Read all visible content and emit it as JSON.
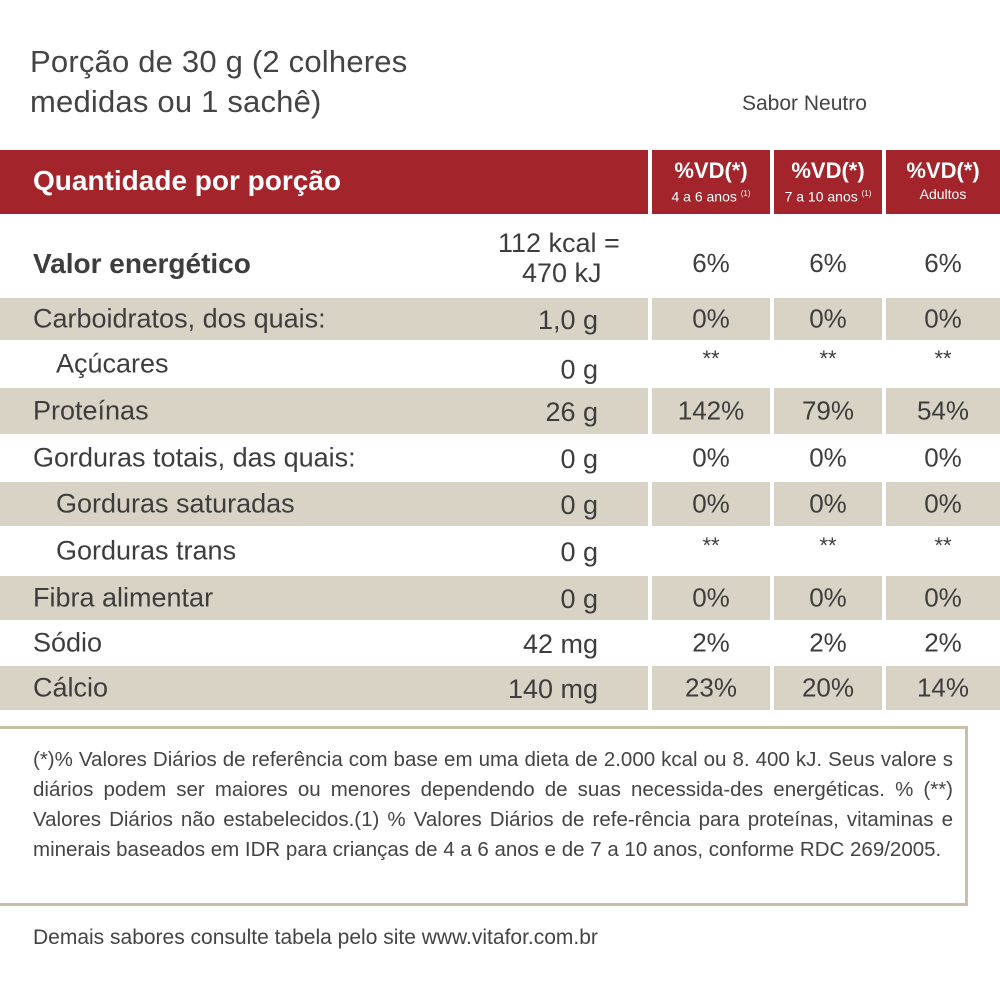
{
  "serving": {
    "line1": "Porção de 30 g (2 colheres",
    "line2": "medidas ou 1 sachê)"
  },
  "flavor": "Sabor Neutro",
  "header": {
    "title": "Quantidade por porção",
    "col1_vd": "%VD(*)",
    "col1_sub": "4 a 6 anos",
    "col1_sup": "(1)",
    "col2_vd": "%VD(*)",
    "col2_sub": "7 a 10 anos",
    "col2_sup": "(1)",
    "col3_vd": "%VD(*)",
    "col3_sub": "Adultos"
  },
  "energy": {
    "label": "Valor energético",
    "amount_line1": "112 kcal =",
    "amount_line2": "470 kJ",
    "vd1": "6%",
    "vd2": "6%",
    "vd3": "6%"
  },
  "rows": [
    {
      "label": "Carboidratos, dos quais:",
      "amount": "1,0 g",
      "vd1": "0%",
      "vd2": "0%",
      "vd3": "0%"
    },
    {
      "label": "Açúcares",
      "amount": "0 g",
      "vd1": "**",
      "vd2": "**",
      "vd3": "**"
    },
    {
      "label": "Proteínas",
      "amount": "26 g",
      "vd1": "142%",
      "vd2": "79%",
      "vd3": "54%"
    },
    {
      "label": "Gorduras totais, das quais:",
      "amount": "0 g",
      "vd1": "0%",
      "vd2": "0%",
      "vd3": "0%"
    },
    {
      "label": "Gorduras saturadas",
      "amount": "0 g",
      "vd1": "0%",
      "vd2": "0%",
      "vd3": "0%"
    },
    {
      "label": "Gorduras trans",
      "amount": "0 g",
      "vd1": "**",
      "vd2": "**",
      "vd3": "**"
    },
    {
      "label": "Fibra alimentar",
      "amount": "0 g",
      "vd1": "0%",
      "vd2": "0%",
      "vd3": "0%"
    },
    {
      "label": "Sódio",
      "amount": "42 mg",
      "vd1": "2%",
      "vd2": "2%",
      "vd3": "2%"
    },
    {
      "label": "Cálcio",
      "amount": "140 mg",
      "vd1": "23%",
      "vd2": "20%",
      "vd3": "14%"
    }
  ],
  "footnote": "(*)% Valores Diários de referência com base em uma dieta de 2.000 kcal ou 8. 400 kJ. Seus valore s diários podem ser maiores ou menores dependendo de suas necessida-des energéticas. % (**) Valores Diários não estabelecidos.(1) % Valores Diários de refe-rência para proteínas, vitaminas e minerais baseados em IDR para crianças de 4 a 6 anos e de 7 a 10 anos, conforme RDC 269/2005.",
  "bottom_note": "Demais sabores consulte tabela pelo site www.vitafor.com.br",
  "colors": {
    "header_red": "#a3242b",
    "shade_beige": "#d9d3c5",
    "border_tan": "#c9bfa6"
  }
}
